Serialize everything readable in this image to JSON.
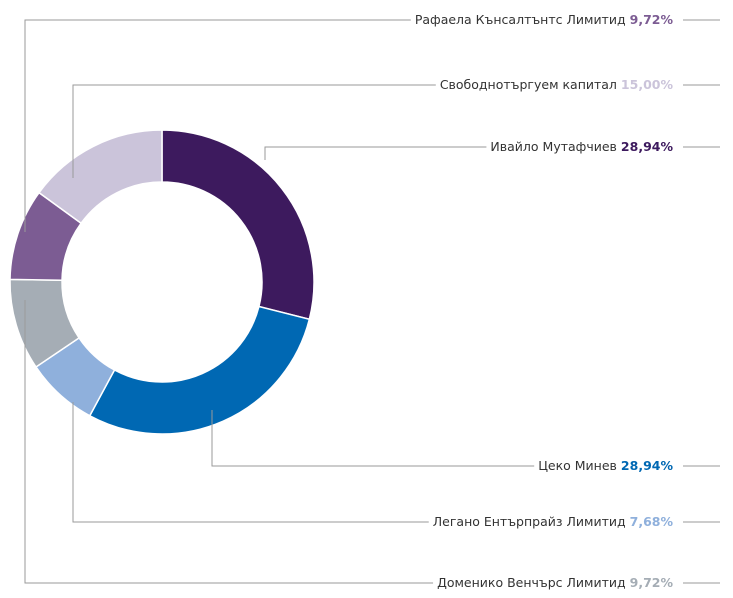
{
  "chart_data": {
    "type": "donut",
    "categories": [
      "Ивайло Мутафчиев",
      "Цеко Минев",
      "Легано Ентърпрайз Лимитид",
      "Доменико Венчърс Лимитид",
      "Рафаела Кънсалтънтс Лимитид",
      "Свободнотъргуем капитал"
    ],
    "values": [
      28.94,
      28.94,
      7.68,
      9.72,
      9.72,
      15.0
    ],
    "value_labels": [
      "28,94%",
      "28,94%",
      "7,68%",
      "9,72%",
      "9,72%",
      "15,00%"
    ],
    "colors": [
      "#3d1a5e",
      "#0068b3",
      "#8fb0dc",
      "#a5adb5",
      "#7c5c93",
      "#cbc4da"
    ]
  }
}
